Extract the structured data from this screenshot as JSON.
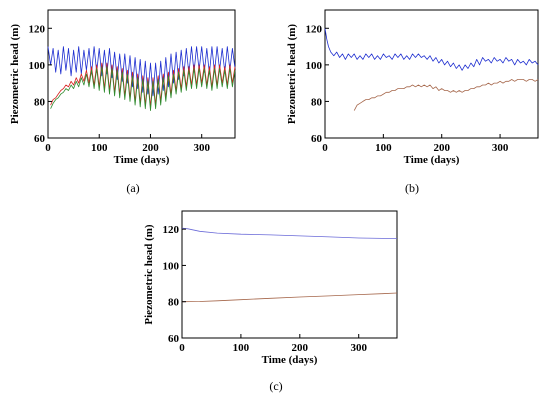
{
  "chart_data": [
    {
      "type": "line",
      "panel_label": "(a)",
      "xlabel": "Time (days)",
      "ylabel": "Piezometric head (m)",
      "xlim": [
        0,
        365
      ],
      "ylim": [
        60,
        130
      ],
      "xticks": [
        0,
        100,
        200,
        300
      ],
      "yticks": [
        60,
        80,
        100,
        120
      ],
      "grid": false,
      "series": [
        {
          "color": "#1f2fd0",
          "x": [
            0,
            5,
            10,
            15,
            20,
            25,
            30,
            35,
            40,
            45,
            50,
            55,
            60,
            65,
            70,
            75,
            80,
            85,
            90,
            95,
            100,
            105,
            110,
            115,
            120,
            125,
            130,
            135,
            140,
            145,
            150,
            155,
            160,
            165,
            170,
            175,
            180,
            185,
            190,
            195,
            200,
            205,
            210,
            215,
            220,
            225,
            230,
            235,
            240,
            245,
            250,
            255,
            260,
            265,
            270,
            275,
            280,
            285,
            290,
            295,
            300,
            305,
            310,
            315,
            320,
            325,
            330,
            335,
            340,
            345,
            350,
            355,
            360,
            365
          ],
          "y": [
            110,
            100,
            109,
            96,
            108,
            95,
            110,
            97,
            109,
            94,
            108,
            96,
            110,
            95,
            108,
            97,
            109,
            95,
            110,
            96,
            109,
            94,
            108,
            95,
            109,
            93,
            107,
            92,
            106,
            91,
            106,
            90,
            105,
            88,
            104,
            87,
            103,
            85,
            102,
            84,
            101,
            83,
            101,
            84,
            102,
            86,
            104,
            88,
            106,
            90,
            107,
            92,
            108,
            94,
            109,
            95,
            110,
            96,
            110,
            97,
            110,
            96,
            109,
            95,
            110,
            96,
            110,
            97,
            109,
            96,
            110,
            97,
            109,
            98
          ]
        },
        {
          "color": "#d81f1f",
          "x": [
            5,
            10,
            15,
            20,
            25,
            30,
            35,
            40,
            45,
            50,
            55,
            60,
            65,
            70,
            75,
            80,
            85,
            90,
            95,
            100,
            105,
            110,
            115,
            120,
            125,
            130,
            135,
            140,
            145,
            150,
            155,
            160,
            165,
            170,
            175,
            180,
            185,
            190,
            195,
            200,
            205,
            210,
            215,
            220,
            225,
            230,
            235,
            240,
            245,
            250,
            255,
            260,
            265,
            270,
            275,
            280,
            285,
            290,
            295,
            300,
            305,
            310,
            315,
            320,
            325,
            330,
            335,
            340,
            345,
            350,
            355,
            360,
            365
          ],
          "y": [
            78,
            81,
            82,
            84,
            86,
            87,
            89,
            88,
            91,
            89,
            93,
            90,
            95,
            91,
            97,
            90,
            99,
            89,
            100,
            88,
            101,
            87,
            101,
            86,
            100,
            85,
            99,
            84,
            98,
            83,
            97,
            82,
            96,
            80,
            95,
            79,
            94,
            78,
            93,
            77,
            93,
            78,
            94,
            80,
            95,
            82,
            96,
            84,
            97,
            86,
            98,
            87,
            99,
            88,
            99,
            89,
            100,
            89,
            100,
            90,
            100,
            89,
            99,
            88,
            100,
            89,
            100,
            90,
            99,
            89,
            100,
            90,
            99
          ]
        },
        {
          "color": "#2e8b2e",
          "x": [
            5,
            10,
            15,
            20,
            25,
            30,
            35,
            40,
            45,
            50,
            55,
            60,
            65,
            70,
            75,
            80,
            85,
            90,
            95,
            100,
            105,
            110,
            115,
            120,
            125,
            130,
            135,
            140,
            145,
            150,
            155,
            160,
            165,
            170,
            175,
            180,
            185,
            190,
            195,
            200,
            205,
            210,
            215,
            220,
            225,
            230,
            235,
            240,
            245,
            250,
            255,
            260,
            265,
            270,
            275,
            280,
            285,
            290,
            295,
            300,
            305,
            310,
            315,
            320,
            325,
            330,
            335,
            340,
            345,
            350,
            355,
            360,
            365
          ],
          "y": [
            76,
            79,
            81,
            82,
            84,
            85,
            87,
            86,
            89,
            87,
            91,
            88,
            93,
            89,
            95,
            88,
            97,
            87,
            98,
            86,
            99,
            85,
            99,
            84,
            98,
            83,
            97,
            82,
            96,
            81,
            95,
            80,
            94,
            78,
            93,
            77,
            92,
            76,
            91,
            75,
            91,
            76,
            92,
            78,
            93,
            80,
            94,
            82,
            95,
            84,
            96,
            85,
            97,
            86,
            97,
            87,
            98,
            87,
            98,
            88,
            98,
            87,
            97,
            86,
            98,
            87,
            98,
            88,
            97,
            87,
            98,
            88,
            97
          ]
        }
      ]
    },
    {
      "type": "line",
      "panel_label": "(b)",
      "xlabel": "Time (days)",
      "ylabel": "Piezometric head (m)",
      "xlim": [
        0,
        365
      ],
      "ylim": [
        60,
        130
      ],
      "xticks": [
        0,
        100,
        200,
        300
      ],
      "yticks": [
        60,
        80,
        100,
        120
      ],
      "grid": false,
      "series": [
        {
          "color": "#1f2fd0",
          "x": [
            0,
            3,
            6,
            10,
            15,
            20,
            25,
            30,
            35,
            40,
            45,
            50,
            55,
            60,
            65,
            70,
            75,
            80,
            85,
            90,
            95,
            100,
            105,
            110,
            115,
            120,
            125,
            130,
            135,
            140,
            145,
            150,
            155,
            160,
            165,
            170,
            175,
            180,
            185,
            190,
            195,
            200,
            205,
            210,
            215,
            220,
            225,
            230,
            235,
            240,
            245,
            250,
            255,
            260,
            265,
            270,
            275,
            280,
            285,
            290,
            295,
            300,
            305,
            310,
            315,
            320,
            325,
            330,
            335,
            340,
            345,
            350,
            355,
            360,
            365
          ],
          "y": [
            120,
            114,
            110,
            107,
            105,
            107,
            104,
            106,
            103,
            106,
            104,
            106,
            103,
            105,
            103,
            106,
            104,
            106,
            103,
            105,
            103,
            106,
            104,
            105,
            103,
            106,
            104,
            106,
            103,
            105,
            103,
            106,
            104,
            106,
            104,
            105,
            103,
            105,
            102,
            104,
            101,
            103,
            100,
            102,
            99,
            101,
            98,
            100,
            97,
            100,
            98,
            101,
            99,
            103,
            100,
            104,
            102,
            103,
            101,
            104,
            102,
            103,
            101,
            104,
            102,
            103,
            100,
            103,
            101,
            102,
            100,
            103,
            101,
            102,
            100
          ]
        },
        {
          "color": "#a5664a",
          "x": [
            50,
            55,
            60,
            65,
            70,
            75,
            80,
            85,
            90,
            95,
            100,
            105,
            110,
            115,
            120,
            125,
            130,
            135,
            140,
            145,
            150,
            155,
            160,
            165,
            170,
            175,
            180,
            185,
            190,
            195,
            200,
            205,
            210,
            215,
            220,
            225,
            230,
            235,
            240,
            245,
            250,
            255,
            260,
            265,
            270,
            275,
            280,
            285,
            290,
            295,
            300,
            305,
            310,
            315,
            320,
            325,
            330,
            335,
            340,
            345,
            350,
            355,
            360,
            365
          ],
          "y": [
            75,
            78,
            79,
            80,
            81,
            81,
            82,
            82,
            83,
            83,
            84,
            85,
            85,
            86,
            86,
            87,
            87,
            87,
            88,
            88,
            89,
            88,
            89,
            88,
            89,
            88,
            89,
            87,
            88,
            86,
            87,
            86,
            86,
            85,
            86,
            85,
            86,
            85,
            86,
            86,
            87,
            87,
            88,
            88,
            89,
            89,
            90,
            89,
            90,
            90,
            91,
            90,
            91,
            91,
            92,
            91,
            92,
            92,
            92,
            91,
            92,
            92,
            91,
            92
          ]
        }
      ]
    },
    {
      "type": "line",
      "panel_label": "(c)",
      "xlabel": "Time (days)",
      "ylabel": "Piezometric head (m)",
      "xlim": [
        0,
        365
      ],
      "ylim": [
        60,
        130
      ],
      "xticks": [
        0,
        100,
        200,
        300
      ],
      "yticks": [
        60,
        80,
        100,
        120
      ],
      "grid": false,
      "series": [
        {
          "color": "#6a6ad8",
          "x": [
            0,
            10,
            30,
            60,
            100,
            150,
            200,
            250,
            300,
            340,
            365
          ],
          "y": [
            120.5,
            120.2,
            118.8,
            117.8,
            117.2,
            116.8,
            116.3,
            115.7,
            115.1,
            114.9,
            114.8
          ]
        },
        {
          "color": "#a5664a",
          "x": [
            0,
            30,
            60,
            100,
            150,
            200,
            250,
            300,
            340,
            365
          ],
          "y": [
            80.0,
            80.1,
            80.5,
            81.1,
            81.9,
            82.6,
            83.2,
            83.9,
            84.4,
            84.8
          ]
        }
      ]
    }
  ]
}
